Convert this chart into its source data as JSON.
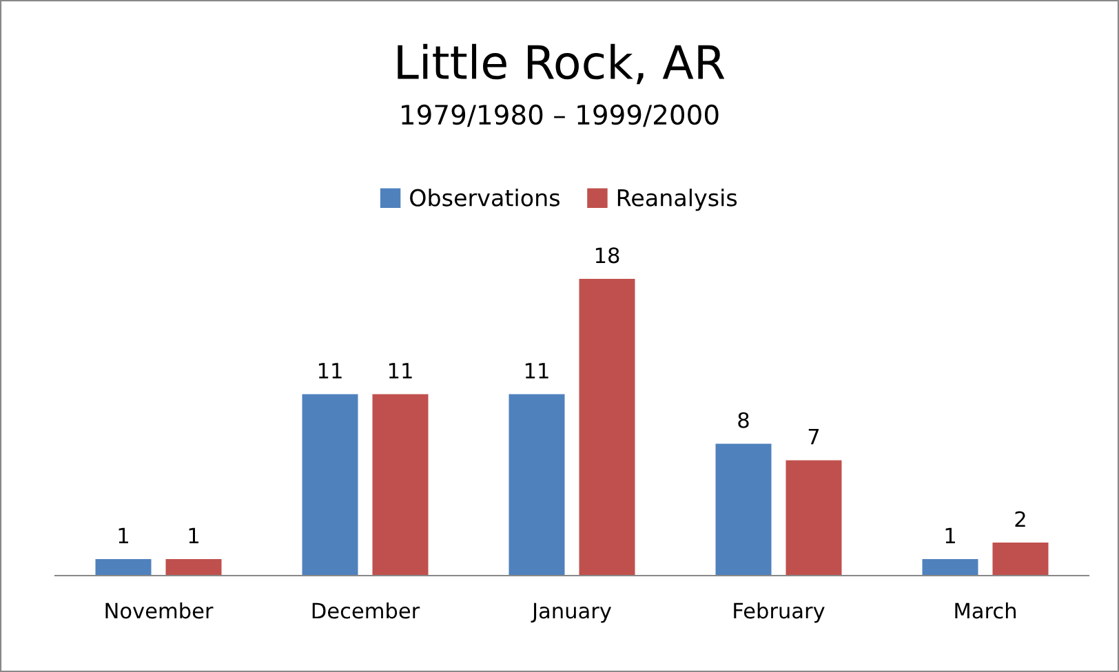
{
  "chart_data": {
    "type": "bar",
    "title": "Little Rock, AR",
    "subtitle": "1979/1980 – 1999/2000",
    "categories": [
      "November",
      "December",
      "January",
      "February",
      "March"
    ],
    "series": [
      {
        "name": "Observations",
        "color": "#4f81bd",
        "values": [
          1,
          11,
          11,
          8,
          1
        ]
      },
      {
        "name": "Reanalysis",
        "color": "#c0504d",
        "values": [
          1,
          11,
          18,
          7,
          2
        ]
      }
    ],
    "data_labels": true,
    "legend": "top",
    "grid": false
  }
}
